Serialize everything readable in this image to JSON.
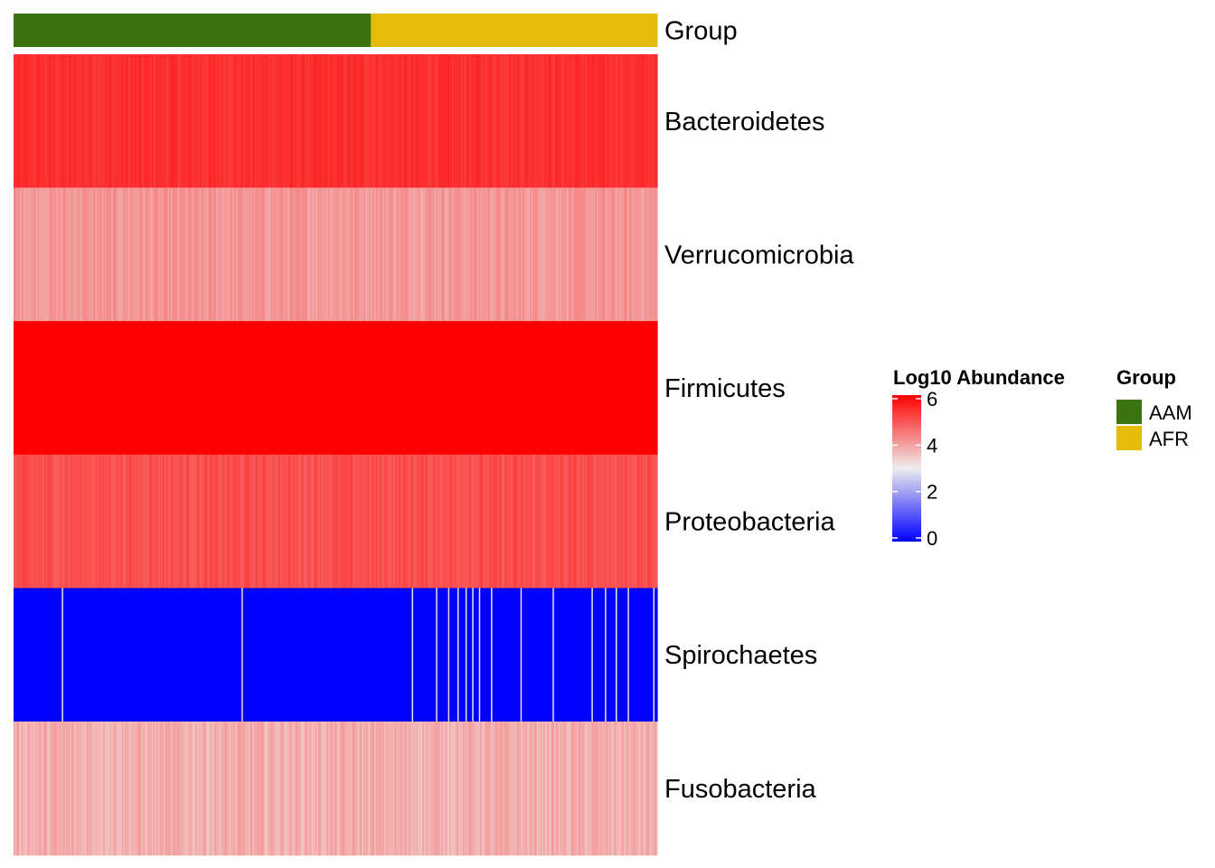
{
  "chart_data": {
    "type": "heatmap",
    "title": "",
    "rows": [
      "Bacteroidetes",
      "Verrucomicrobia",
      "Firmicutes",
      "Proteobacteria",
      "Spirochaetes",
      "Fusobacteria"
    ],
    "annotation": {
      "label": "Group",
      "groups": [
        {
          "name": "AAM",
          "color": "#3B7310",
          "fraction": 0.555
        },
        {
          "name": "AFR",
          "color": "#E5BC0A",
          "fraction": 0.445
        }
      ]
    },
    "row_values_approx": {
      "Bacteroidetes": {
        "typical": 5.4,
        "range": [
          5.2,
          5.6
        ]
      },
      "Verrucomicrobia": {
        "typical": 4.1,
        "range": [
          3.8,
          4.4
        ]
      },
      "Firmicutes": {
        "typical": 6.0,
        "range": [
          6.0,
          6.0
        ]
      },
      "Proteobacteria": {
        "typical": 5.0,
        "range": [
          4.8,
          5.3
        ]
      },
      "Spirochaetes": {
        "typical": 0.0,
        "range": [
          0.0,
          3.4
        ]
      },
      "Fusobacteria": {
        "typical": 3.8,
        "range": [
          3.5,
          4.2
        ]
      }
    },
    "color_scale": {
      "title": "Log10 Abundance",
      "min": 0,
      "mid": 3,
      "max": 6,
      "colors": [
        "#0000FF",
        "#EEEEEE",
        "#FF0000"
      ],
      "ticks": [
        0,
        2,
        4,
        6
      ]
    },
    "legend": {
      "title": "Group",
      "items": [
        {
          "label": "AAM",
          "color": "#3B7310"
        },
        {
          "label": "AFR",
          "color": "#E5BC0A"
        }
      ]
    }
  }
}
